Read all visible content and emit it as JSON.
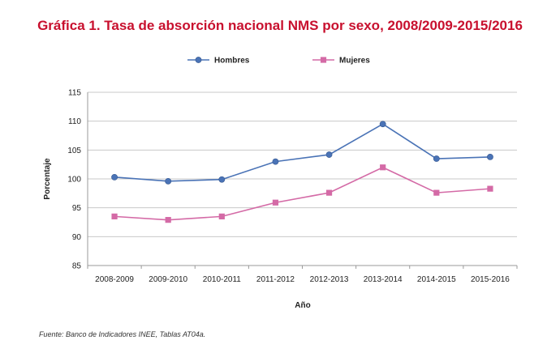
{
  "chart_data": {
    "type": "line",
    "title": "Gráfica 1. Tasa de absorción nacional NMS por sexo, 2008/2009-2015/2016",
    "xlabel": "Año",
    "ylabel": "Porcentaje",
    "ylim": [
      85,
      115
    ],
    "yticks": [
      85,
      90,
      95,
      100,
      105,
      110,
      115
    ],
    "grid": true,
    "legend_position": "top",
    "categories": [
      "2008-2009",
      "2009-2010",
      "2010-2011",
      "2011-2012",
      "2012-2013",
      "2013-2014",
      "2014-2015",
      "2015-2016"
    ],
    "series": [
      {
        "name": "Hombres",
        "color": "#4a73b6",
        "marker": "circle",
        "values": [
          100.3,
          99.6,
          99.9,
          103.0,
          104.2,
          109.5,
          103.5,
          103.8
        ]
      },
      {
        "name": "Mujeres",
        "color": "#d46aa6",
        "marker": "square",
        "values": [
          93.5,
          92.9,
          93.5,
          95.9,
          97.6,
          102.0,
          97.6,
          98.3
        ]
      }
    ]
  },
  "title_color": "#c8102e",
  "source_note": "Fuente: Banco de Indicadores INEE, Tablas AT04a."
}
